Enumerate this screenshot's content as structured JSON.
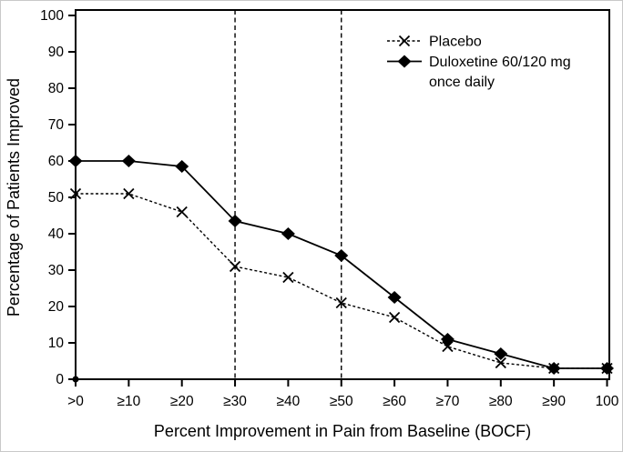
{
  "figure": {
    "background": "#ffffff",
    "ink_color": "#000000"
  },
  "chart_data": {
    "type": "line",
    "title": "",
    "xlabel": "Percent Improvement in Pain from Baseline (BOCF)",
    "ylabel": "Percentage of Patients Improved",
    "ylim": [
      0,
      100
    ],
    "ytick_interval": 10,
    "yticks": [
      0,
      10,
      20,
      30,
      40,
      50,
      60,
      70,
      80,
      90,
      100
    ],
    "categories": [
      ">0",
      "≥10",
      "≥20",
      "≥30",
      "≥40",
      "≥50",
      "≥60",
      "≥70",
      "≥80",
      "≥90",
      "100"
    ],
    "grid": false,
    "frame": true,
    "reference_lines": {
      "style": "vertical-dashed",
      "at_categories": [
        "≥30",
        "≥50"
      ]
    },
    "origin_marker": {
      "category": ">0",
      "value": 0,
      "shape": "dot"
    },
    "legend": {
      "position": "top-right-inside",
      "items": [
        {
          "label": "Placebo",
          "label_lines": [
            "Placebo"
          ],
          "line_style": "dashed",
          "marker": "x"
        },
        {
          "label": "Duloxetine 60/120 mg once daily",
          "label_lines": [
            "Duloxetine 60/120 mg",
            "once daily"
          ],
          "line_style": "solid",
          "marker": "diamond"
        }
      ]
    },
    "series": [
      {
        "name": "Placebo",
        "marker": "x",
        "line_style": "dashed",
        "values": [
          51,
          51,
          46,
          31,
          28,
          21,
          17,
          9,
          4.5,
          3,
          3
        ]
      },
      {
        "name": "Duloxetine 60/120 mg once daily",
        "marker": "diamond",
        "line_style": "solid",
        "values": [
          60,
          60,
          58.5,
          43.5,
          40,
          34,
          22.5,
          11,
          7,
          3,
          3
        ]
      }
    ]
  }
}
